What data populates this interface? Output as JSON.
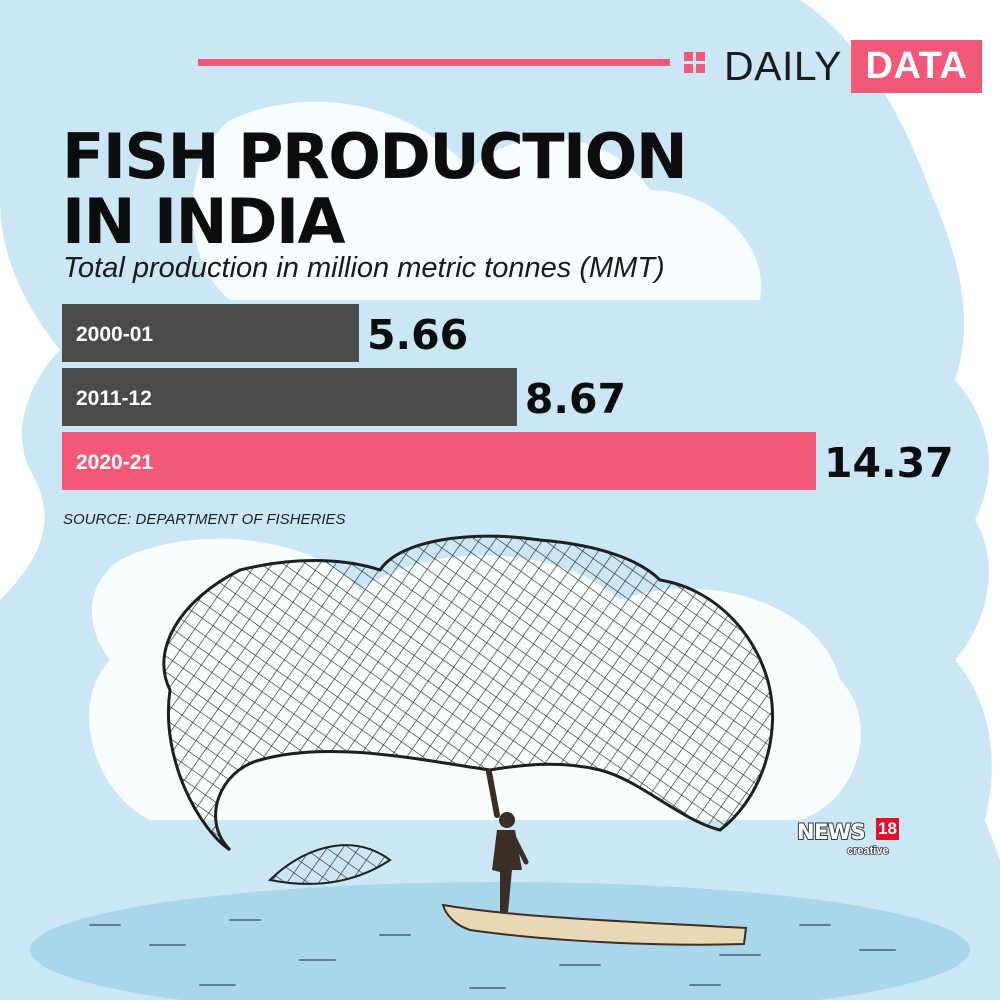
{
  "header": {
    "brand_word": "DAILY",
    "brand_badge": "DATA"
  },
  "title_lines": [
    "FISH PRODUCTION",
    "IN INDIA"
  ],
  "subtitle": "Total production in million metric tonnes (MMT)",
  "source": "SOURCE: DEPARTMENT OF FISHERIES",
  "logo": {
    "name": "NEWS",
    "number": "18",
    "tag": "creative"
  },
  "colors": {
    "accent": "#f25878",
    "bar_dark": "#4a4a4a",
    "sky": "#cbe7f6",
    "text": "#0d0d0d"
  },
  "icons": [
    "grid-squares-icon",
    "fishing-net-illustration",
    "fisherman-illustration",
    "boat-illustration"
  ],
  "chart_data": {
    "type": "bar",
    "orientation": "horizontal",
    "title": "FISH PRODUCTION IN INDIA",
    "subtitle": "Total production in million metric tonnes (MMT)",
    "categories": [
      "2000-01",
      "2011-12",
      "2020-21"
    ],
    "values": [
      5.66,
      8.67,
      14.37
    ],
    "value_labels": [
      "5.66",
      "8.67",
      "14.37"
    ],
    "bar_colors": [
      "#4a4a4a",
      "#4a4a4a",
      "#f25878"
    ],
    "xlim": [
      0,
      14.37
    ],
    "grid": false,
    "legend": "none"
  }
}
